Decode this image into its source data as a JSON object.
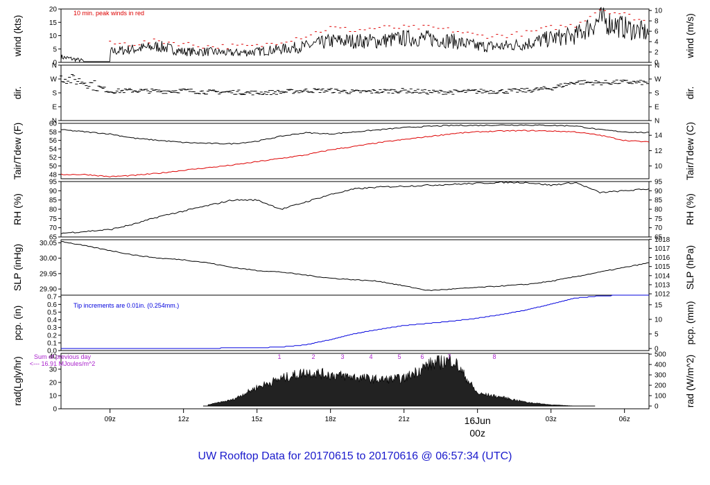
{
  "title": "UW Rooftop Data for 20170615  to  20170616 @ 06:57:34  (UTC)",
  "x_ticks": [
    "09z",
    "12z",
    "15z",
    "18z",
    "21z",
    "00z",
    "03z",
    "06z"
  ],
  "date_label": "16Jun",
  "date_hour": "00z",
  "colors": {
    "red": "#dd0000",
    "blue": "#0000dd",
    "purple": "#aa22cc",
    "title": "#1a1acc",
    "black": "#000000"
  },
  "panels": {
    "wind": {
      "ylabel_left": "wind (kts)",
      "ylabel_right": "wind (m/s)",
      "left_ticks": [
        "0",
        "5",
        "10",
        "15",
        "20"
      ],
      "right_ticks": [
        "0",
        "2",
        "4",
        "6",
        "8",
        "10"
      ],
      "note": "10 min. peak winds in red"
    },
    "dir": {
      "ylabel_left": "dir.",
      "ylabel_right": "dir.",
      "ticks": [
        "N",
        "E",
        "S",
        "W",
        "N"
      ]
    },
    "temp": {
      "ylabel_left": "Tair/Tdew (F)",
      "ylabel_right": "Tair/Tdew (C)",
      "left_ticks": [
        "48",
        "50",
        "52",
        "54",
        "56",
        "58",
        "60"
      ],
      "right_ticks": [
        "10",
        "12",
        "14"
      ]
    },
    "rh": {
      "ylabel_left": "RH (%)",
      "ylabel_right": "RH (%)",
      "ticks": [
        "65",
        "70",
        "75",
        "80",
        "85",
        "90",
        "95"
      ]
    },
    "slp": {
      "ylabel_left": "SLP (inHg)",
      "ylabel_right": "SLP (hPa)",
      "left_ticks": [
        "29.90",
        "29.95",
        "30.00",
        "30.05"
      ],
      "right_ticks": [
        "1012",
        "1013",
        "1014",
        "1015",
        "1016",
        "1017",
        "1018"
      ]
    },
    "pcp": {
      "ylabel_left": "pcp. (in)",
      "ylabel_right": "pcp. (mm)",
      "left_ticks": [
        "0.0",
        "0.1",
        "0.2",
        "0.3",
        "0.4",
        "0.5",
        "0.6",
        "0.7"
      ],
      "right_ticks": [
        "0",
        "5",
        "10",
        "15"
      ],
      "note": "Tip increments are 0.01in. (0.254mm.)"
    },
    "rad": {
      "ylabel_left": "rad(Lgly/hr)",
      "ylabel_right": "rad (W/m^2)",
      "left_ticks": [
        "0",
        "10",
        "20",
        "30",
        "40"
      ],
      "right_ticks": [
        "0",
        "100",
        "200",
        "300",
        "400",
        "500"
      ],
      "note1": "Sum of previous day",
      "note2": "<--- 16.91 MJoules/m^2",
      "markers": [
        "1",
        "2",
        "3",
        "4",
        "5",
        "6",
        "7",
        "8"
      ]
    }
  },
  "chart_data": [
    {
      "type": "line",
      "title": "",
      "ylabel": "wind (kts)",
      "xlim_hours_utc": [
        "07z",
        "07z"
      ],
      "ylim": [
        0,
        20
      ],
      "x": [
        "07z",
        "08z",
        "09z",
        "10z",
        "11z",
        "12z",
        "13z",
        "14z",
        "15z",
        "16z",
        "17z",
        "18z",
        "19z",
        "20z",
        "21z",
        "22z",
        "23z",
        "00z",
        "01z",
        "02z",
        "03z",
        "04z",
        "05z",
        "06z",
        "07z"
      ],
      "series": [
        {
          "name": "wind",
          "values": [
            2,
            0.5,
            4,
            5,
            6,
            4,
            4,
            3.5,
            4,
            5,
            6,
            8,
            8,
            8,
            9,
            9,
            8,
            6,
            6,
            7,
            9,
            10,
            16,
            13,
            11
          ]
        },
        {
          "name": "10 min. peak winds in red",
          "values": [
            3,
            0.5,
            7,
            7,
            8,
            7,
            6,
            6,
            6,
            8,
            10,
            13,
            12,
            13,
            13,
            13,
            12,
            10,
            10,
            11,
            13,
            14,
            20,
            18,
            15
          ]
        }
      ]
    },
    {
      "type": "scatter",
      "title": "",
      "ylabel": "dir.",
      "ylim": [
        "N",
        "N"
      ],
      "x": [
        "07z",
        "08z",
        "09z",
        "10z",
        "11z",
        "12z",
        "13z",
        "14z",
        "15z",
        "16z",
        "17z",
        "18z",
        "19z",
        "20z",
        "21z",
        "22z",
        "23z",
        "00z",
        "01z",
        "02z",
        "03z",
        "04z",
        "05z",
        "06z",
        "07z"
      ],
      "series": [
        {
          "name": "dir",
          "values": [
            280,
            250,
            190,
            195,
            190,
            195,
            185,
            185,
            180,
            185,
            195,
            195,
            185,
            190,
            195,
            185,
            185,
            190,
            190,
            195,
            210,
            250,
            245,
            250,
            245
          ]
        }
      ]
    },
    {
      "type": "line",
      "title": "",
      "ylabel": "Tair/Tdew (F)",
      "ylim": [
        47,
        60
      ],
      "x": [
        "07z",
        "08z",
        "09z",
        "10z",
        "11z",
        "12z",
        "13z",
        "14z",
        "15z",
        "16z",
        "17z",
        "18z",
        "19z",
        "20z",
        "21z",
        "22z",
        "23z",
        "00z",
        "01z",
        "02z",
        "03z",
        "04z",
        "05z",
        "06z",
        "07z"
      ],
      "series": [
        {
          "name": "Tair",
          "values": [
            58.5,
            58,
            57.5,
            56.5,
            56,
            55.5,
            55.3,
            55.2,
            55.8,
            57,
            57.8,
            57.5,
            58,
            58.5,
            59,
            59.3,
            59.5,
            59.5,
            59.6,
            59.6,
            59.5,
            59.4,
            58.5,
            58,
            57.8
          ]
        },
        {
          "name": "Tdew",
          "values": [
            48,
            48,
            47.5,
            47.8,
            48.3,
            49,
            49.6,
            50.2,
            51,
            51.8,
            52.6,
            53.8,
            54.6,
            55.5,
            56.2,
            56.9,
            57.6,
            58,
            58.2,
            58.3,
            58.2,
            58,
            57.2,
            56,
            55.6
          ]
        }
      ]
    },
    {
      "type": "line",
      "title": "",
      "ylabel": "RH (%)",
      "ylim": [
        65,
        95
      ],
      "x": [
        "07z",
        "08z",
        "09z",
        "10z",
        "11z",
        "12z",
        "13z",
        "14z",
        "15z",
        "16z",
        "17z",
        "18z",
        "19z",
        "20z",
        "21z",
        "22z",
        "23z",
        "00z",
        "01z",
        "02z",
        "03z",
        "04z",
        "05z",
        "06z",
        "07z"
      ],
      "series": [
        {
          "name": "RH",
          "values": [
            67,
            68,
            69,
            72,
            76,
            79,
            82,
            85,
            85,
            80,
            84,
            88,
            91,
            92,
            92.5,
            93,
            93.5,
            94,
            94.5,
            94.5,
            93,
            94.5,
            89,
            90,
            91
          ]
        }
      ]
    },
    {
      "type": "line",
      "title": "",
      "ylabel": "SLP (inHg)",
      "ylim": [
        29.88,
        30.06
      ],
      "x": [
        "07z",
        "08z",
        "09z",
        "10z",
        "11z",
        "12z",
        "13z",
        "14z",
        "15z",
        "16z",
        "17z",
        "18z",
        "19z",
        "20z",
        "21z",
        "22z",
        "23z",
        "00z",
        "01z",
        "02z",
        "03z",
        "04z",
        "05z",
        "06z",
        "07z"
      ],
      "series": [
        {
          "name": "SLP",
          "values": [
            30.055,
            30.04,
            30.025,
            30.01,
            30.0,
            29.995,
            29.985,
            29.97,
            29.96,
            29.955,
            29.945,
            29.935,
            29.93,
            29.925,
            29.91,
            29.895,
            29.9,
            29.905,
            29.91,
            29.915,
            29.925,
            29.94,
            29.955,
            29.97,
            29.985
          ]
        }
      ]
    },
    {
      "type": "line",
      "title": "",
      "ylabel": "pcp. (in)",
      "ylim": [
        0,
        0.72
      ],
      "x": [
        "07z",
        "08z",
        "09z",
        "10z",
        "11z",
        "12z",
        "13z",
        "14z",
        "15z",
        "16z",
        "17z",
        "18z",
        "19z",
        "20z",
        "21z",
        "22z",
        "23z",
        "00z",
        "01z",
        "02z",
        "03z",
        "04z",
        "05z",
        "06z",
        "07z"
      ],
      "series": [
        {
          "name": "pcp",
          "values": [
            0,
            0,
            0,
            0,
            0,
            0,
            0,
            0.01,
            0.01,
            0.02,
            0.05,
            0.12,
            0.2,
            0.26,
            0.31,
            0.34,
            0.37,
            0.41,
            0.46,
            0.52,
            0.6,
            0.68,
            0.71,
            0.72,
            0.72
          ]
        }
      ]
    },
    {
      "type": "area",
      "title": "",
      "ylabel": "rad(Lgly/hr)",
      "ylim": [
        0,
        40
      ],
      "x": [
        "07z",
        "08z",
        "09z",
        "10z",
        "11z",
        "12z",
        "13z",
        "14z",
        "15z",
        "16z",
        "17z",
        "18z",
        "19z",
        "20z",
        "21z",
        "22z",
        "23z",
        "00z",
        "01z",
        "02z",
        "03z",
        "04z",
        "05z",
        "06z",
        "07z"
      ],
      "series": [
        {
          "name": "rad",
          "values": [
            0,
            0,
            0,
            0,
            0,
            0,
            1,
            5,
            15,
            22,
            27,
            25,
            23,
            21,
            22,
            33,
            37,
            10,
            7,
            3,
            1,
            0,
            0,
            0,
            0
          ]
        }
      ]
    }
  ]
}
